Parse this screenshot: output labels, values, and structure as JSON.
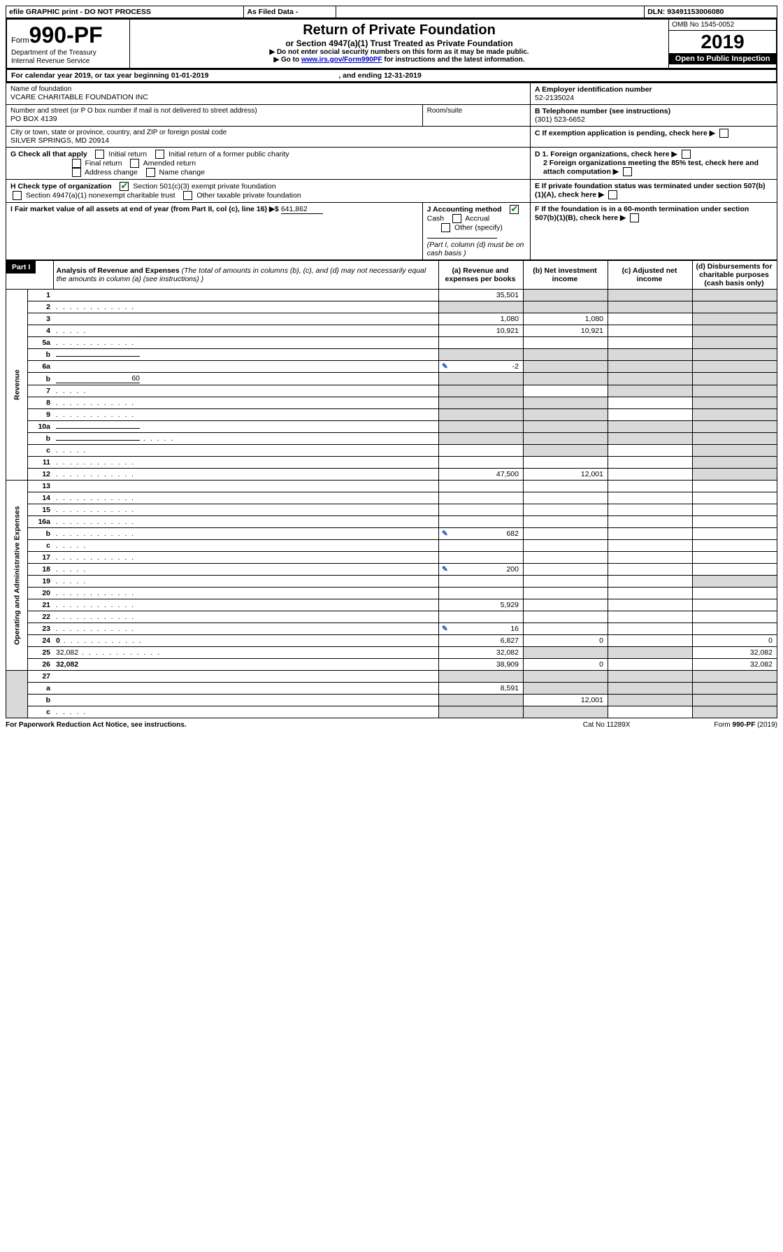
{
  "topbar": {
    "efile": "efile GRAPHIC print - DO NOT PROCESS",
    "asfiled": "As Filed Data -",
    "dln_label": "DLN:",
    "dln": "93491153006080"
  },
  "header": {
    "form_prefix": "Form",
    "form_no": "990-PF",
    "dept": "Department of the Treasury",
    "irs": "Internal Revenue Service",
    "title": "Return of Private Foundation",
    "subtitle": "or Section 4947(a)(1) Trust Treated as Private Foundation",
    "note1": "▶ Do not enter social security numbers on this form as it may be made public.",
    "note2_pre": "▶ Go to ",
    "note2_link": "www.irs.gov/Form990PF",
    "note2_post": " for instructions and the latest information.",
    "omb": "OMB No 1545-0052",
    "year": "2019",
    "open": "Open to Public Inspection"
  },
  "cal_line": {
    "pre": "For calendar year 2019, or tax year beginning ",
    "begin": "01-01-2019",
    "mid": " , and ending ",
    "end": "12-31-2019"
  },
  "info": {
    "name_label": "Name of foundation",
    "name": "VCARE CHARITABLE FOUNDATION INC",
    "a_label": "A Employer identification number",
    "ein": "52-2135024",
    "addr_label": "Number and street (or P O  box number if mail is not delivered to street address)",
    "addr": "PO BOX 4139",
    "room_label": "Room/suite",
    "b_label": "B Telephone number (see instructions)",
    "phone": "(301) 523-6652",
    "city_label": "City or town, state or province, country, and ZIP or foreign postal code",
    "city": "SILVER SPRINGS, MD  20914",
    "c_label": "C If exemption application is pending, check here",
    "g_label": "G Check all that apply",
    "g_opts": [
      "Initial return",
      "Initial return of a former public charity",
      "Final return",
      "Amended return",
      "Address change",
      "Name change"
    ],
    "d1": "D 1. Foreign organizations, check here",
    "d2": "2 Foreign organizations meeting the 85% test, check here and attach computation",
    "h_label": "H Check type of organization",
    "h_opt1": "Section 501(c)(3) exempt private foundation",
    "h_opt2_pre": "Section 4947(a)(1) nonexempt charitable trust",
    "h_opt2_post": "Other taxable private foundation",
    "e_label": "E  If private foundation status was terminated under section 507(b)(1)(A), check here",
    "i_label": "I Fair market value of all assets at end of year (from Part II, col  (c), line 16) ▶$",
    "i_val": "641,862",
    "j_label": "J Accounting method",
    "j_opts": [
      "Cash",
      "Accrual",
      "Other (specify)"
    ],
    "j_note": "(Part I, column (d) must be on cash basis )",
    "f_label": "F  If the foundation is in a 60-month termination under section 507(b)(1)(B), check here"
  },
  "part1": {
    "label": "Part I",
    "title": "Analysis of Revenue and Expenses",
    "title_note": "(The total of amounts in columns (b), (c), and (d) may not necessarily equal the amounts in column (a) (see instructions) )",
    "col_a": "(a) Revenue and expenses per books",
    "col_b": "(b) Net investment income",
    "col_c": "(c) Adjusted net income",
    "col_d": "(d) Disbursements for charitable purposes (cash basis only)",
    "revenue_label": "Revenue",
    "expenses_label": "Operating and Administrative Expenses",
    "rows": [
      {
        "n": "1",
        "d": "",
        "a": "35,501",
        "b": "",
        "c": "",
        "ashade": false,
        "bshade": true,
        "cshade": true,
        "dshade": true
      },
      {
        "n": "2",
        "d": "",
        "dots": true,
        "a": "",
        "b": "",
        "c": "",
        "ashade": true,
        "bshade": true,
        "cshade": true,
        "dshade": true
      },
      {
        "n": "3",
        "d": "",
        "a": "1,080",
        "b": "1,080",
        "c": "",
        "dshade": true
      },
      {
        "n": "4",
        "d": "",
        "dots": "s",
        "a": "10,921",
        "b": "10,921",
        "c": "",
        "dshade": true
      },
      {
        "n": "5a",
        "d": "",
        "dots": true,
        "a": "",
        "b": "",
        "c": "",
        "dshade": true
      },
      {
        "n": "b",
        "d": "",
        "inline": true,
        "a": "",
        "b": "",
        "c": "",
        "ashade": true,
        "bshade": true,
        "cshade": true,
        "dshade": true
      },
      {
        "n": "6a",
        "d": "",
        "a": "-2",
        "alink": true,
        "b": "",
        "c": "",
        "bshade": true,
        "cshade": true,
        "dshade": true
      },
      {
        "n": "b",
        "d": "",
        "inline": true,
        "inlineval": "60",
        "a": "",
        "b": "",
        "c": "",
        "ashade": true,
        "bshade": true,
        "cshade": true,
        "dshade": true
      },
      {
        "n": "7",
        "d": "",
        "dots": "s",
        "a": "",
        "b": "",
        "c": "",
        "ashade": true,
        "cshade": true,
        "dshade": true
      },
      {
        "n": "8",
        "d": "",
        "dots": true,
        "a": "",
        "b": "",
        "c": "",
        "ashade": true,
        "bshade": true,
        "dshade": true
      },
      {
        "n": "9",
        "d": "",
        "dots": true,
        "a": "",
        "b": "",
        "c": "",
        "ashade": true,
        "bshade": true,
        "dshade": true
      },
      {
        "n": "10a",
        "d": "",
        "inline": true,
        "a": "",
        "b": "",
        "c": "",
        "ashade": true,
        "bshade": true,
        "cshade": true,
        "dshade": true
      },
      {
        "n": "b",
        "d": "",
        "dots": "s",
        "inline": true,
        "a": "",
        "b": "",
        "c": "",
        "ashade": true,
        "bshade": true,
        "cshade": true,
        "dshade": true
      },
      {
        "n": "c",
        "d": "",
        "dots": "s",
        "a": "",
        "b": "",
        "c": "",
        "bshade": true,
        "dshade": true
      },
      {
        "n": "11",
        "d": "",
        "dots": true,
        "a": "",
        "b": "",
        "c": "",
        "dshade": true
      },
      {
        "n": "12",
        "d": "",
        "dots": true,
        "bold": true,
        "a": "47,500",
        "b": "12,001",
        "c": "",
        "dshade": true
      }
    ],
    "exp_rows": [
      {
        "n": "13",
        "d": "",
        "a": "",
        "b": "",
        "c": ""
      },
      {
        "n": "14",
        "d": "",
        "dots": true,
        "a": "",
        "b": "",
        "c": ""
      },
      {
        "n": "15",
        "d": "",
        "dots": true,
        "a": "",
        "b": "",
        "c": ""
      },
      {
        "n": "16a",
        "d": "",
        "dots": true,
        "a": "",
        "b": "",
        "c": ""
      },
      {
        "n": "b",
        "d": "",
        "dots": true,
        "a": "682",
        "alink": true,
        "b": "",
        "c": ""
      },
      {
        "n": "c",
        "d": "",
        "dots": "s",
        "a": "",
        "b": "",
        "c": ""
      },
      {
        "n": "17",
        "d": "",
        "dots": true,
        "a": "",
        "b": "",
        "c": ""
      },
      {
        "n": "18",
        "d": "",
        "dots": "s",
        "a": "200",
        "alink": true,
        "b": "",
        "c": ""
      },
      {
        "n": "19",
        "d": "",
        "dots": "s",
        "a": "",
        "b": "",
        "c": "",
        "dshade": true
      },
      {
        "n": "20",
        "d": "",
        "dots": true,
        "a": "",
        "b": "",
        "c": ""
      },
      {
        "n": "21",
        "d": "",
        "dots": true,
        "a": "5,929",
        "b": "",
        "c": ""
      },
      {
        "n": "22",
        "d": "",
        "dots": true,
        "a": "",
        "b": "",
        "c": ""
      },
      {
        "n": "23",
        "d": "",
        "dots": true,
        "a": "16",
        "alink": true,
        "b": "",
        "c": ""
      },
      {
        "n": "24",
        "d": "0",
        "dots": true,
        "bold": true,
        "a": "6,827",
        "b": "0",
        "c": ""
      },
      {
        "n": "25",
        "d": "32,082",
        "dots": true,
        "a": "32,082",
        "b": "",
        "c": "",
        "bshade": true,
        "cshade": true
      },
      {
        "n": "26",
        "d": "32,082",
        "bold": true,
        "a": "38,909",
        "b": "0",
        "c": ""
      }
    ],
    "tail_rows": [
      {
        "n": "27",
        "d": "",
        "a": "",
        "b": "",
        "c": "",
        "ashade": true,
        "bshade": true,
        "cshade": true,
        "dshade": true
      },
      {
        "n": "a",
        "d": "",
        "bold": true,
        "a": "8,591",
        "b": "",
        "c": "",
        "bshade": true,
        "cshade": true,
        "dshade": true
      },
      {
        "n": "b",
        "d": "",
        "bold": true,
        "a": "",
        "b": "12,001",
        "c": "",
        "ashade": true,
        "cshade": true,
        "dshade": true
      },
      {
        "n": "c",
        "d": "",
        "dots": "s",
        "bold": true,
        "a": "",
        "b": "",
        "c": "",
        "ashade": true,
        "bshade": true,
        "dshade": true
      }
    ]
  },
  "footer": {
    "left": "For Paperwork Reduction Act Notice, see instructions.",
    "cat": "Cat  No  11289X",
    "right": "Form 990-PF (2019)"
  }
}
